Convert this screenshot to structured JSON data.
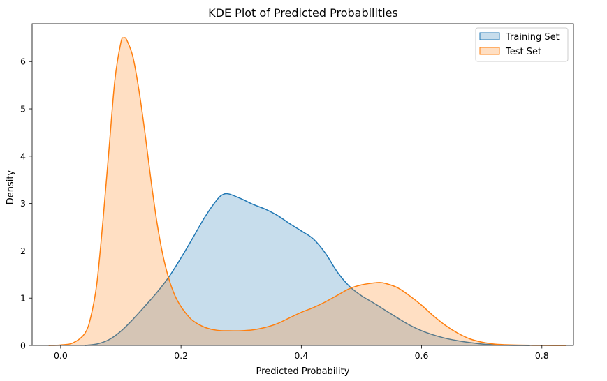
{
  "chart_data": {
    "type": "area",
    "title": "KDE Plot of Predicted Probabilities",
    "xlabel": "Predicted Probability",
    "ylabel": "Density",
    "xlim": [
      -0.0475,
      0.8525
    ],
    "ylim": [
      0,
      6.8
    ],
    "xticks": [
      0.0,
      0.2,
      0.4,
      0.6,
      0.8
    ],
    "xtick_labels": [
      "0.0",
      "0.2",
      "0.4",
      "0.6",
      "0.8"
    ],
    "yticks": [
      0,
      1,
      2,
      3,
      4,
      5,
      6
    ],
    "ytick_labels": [
      "0",
      "1",
      "2",
      "3",
      "4",
      "5",
      "6"
    ],
    "grid": false,
    "legend_position": "top-right",
    "series": [
      {
        "name": "Training Set",
        "line_color": "#1f77b4",
        "fill_color": "#1f77b4",
        "fill_opacity": 0.25,
        "x": [
          0.04,
          0.06,
          0.08,
          0.1,
          0.12,
          0.14,
          0.16,
          0.18,
          0.2,
          0.22,
          0.24,
          0.26,
          0.27,
          0.28,
          0.3,
          0.32,
          0.34,
          0.36,
          0.38,
          0.4,
          0.42,
          0.44,
          0.46,
          0.48,
          0.5,
          0.52,
          0.54,
          0.56,
          0.58,
          0.6,
          0.62,
          0.64,
          0.66,
          0.68,
          0.7,
          0.72,
          0.74,
          0.76,
          0.78
        ],
        "y": [
          0.0,
          0.03,
          0.12,
          0.3,
          0.55,
          0.83,
          1.12,
          1.45,
          1.85,
          2.28,
          2.72,
          3.08,
          3.19,
          3.2,
          3.1,
          2.98,
          2.88,
          2.75,
          2.58,
          2.42,
          2.25,
          1.95,
          1.55,
          1.25,
          1.05,
          0.9,
          0.74,
          0.58,
          0.43,
          0.31,
          0.22,
          0.15,
          0.1,
          0.06,
          0.03,
          0.015,
          0.006,
          0.002,
          0.0
        ]
      },
      {
        "name": "Test Set",
        "line_color": "#ff7f0e",
        "fill_color": "#ff7f0e",
        "fill_opacity": 0.25,
        "x": [
          -0.02,
          0.0,
          0.02,
          0.04,
          0.05,
          0.06,
          0.07,
          0.08,
          0.09,
          0.1,
          0.105,
          0.11,
          0.12,
          0.13,
          0.14,
          0.15,
          0.16,
          0.17,
          0.18,
          0.19,
          0.2,
          0.21,
          0.22,
          0.24,
          0.26,
          0.28,
          0.3,
          0.32,
          0.34,
          0.36,
          0.38,
          0.4,
          0.42,
          0.44,
          0.46,
          0.48,
          0.5,
          0.52,
          0.53,
          0.54,
          0.56,
          0.58,
          0.6,
          0.62,
          0.64,
          0.66,
          0.68,
          0.7,
          0.72,
          0.74,
          0.76,
          0.78,
          0.8,
          0.84
        ],
        "y": [
          0.0,
          0.01,
          0.05,
          0.25,
          0.6,
          1.3,
          2.6,
          4.1,
          5.6,
          6.4,
          6.5,
          6.45,
          6.1,
          5.4,
          4.5,
          3.5,
          2.6,
          1.9,
          1.4,
          1.05,
          0.82,
          0.65,
          0.52,
          0.38,
          0.32,
          0.31,
          0.31,
          0.33,
          0.38,
          0.46,
          0.58,
          0.7,
          0.8,
          0.92,
          1.06,
          1.2,
          1.28,
          1.32,
          1.33,
          1.31,
          1.22,
          1.05,
          0.85,
          0.62,
          0.42,
          0.26,
          0.14,
          0.07,
          0.03,
          0.015,
          0.007,
          0.003,
          0.001,
          0.0
        ]
      }
    ]
  }
}
